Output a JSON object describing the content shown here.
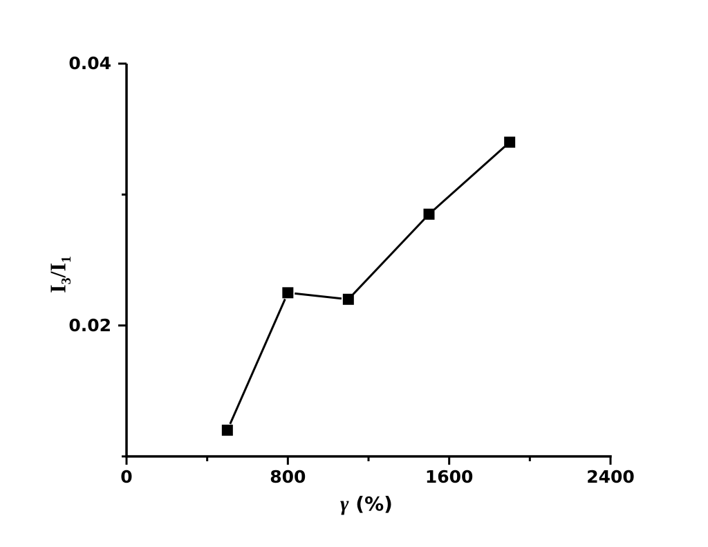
{
  "chart_data": {
    "type": "line",
    "title": "",
    "x": [
      500,
      800,
      1100,
      1500,
      1900
    ],
    "y": [
      0.012,
      0.0225,
      0.022,
      0.0285,
      0.034
    ],
    "xlim": [
      0,
      2400
    ],
    "ylim": [
      0.01,
      0.04
    ],
    "x_major_ticks": [
      0,
      800,
      1600,
      2400
    ],
    "x_minor_ticks": [
      400,
      1200,
      2000
    ],
    "x_tick_labels": [
      "0",
      "800",
      "1600",
      "2400"
    ],
    "y_major_ticks": [
      0.02,
      0.04
    ],
    "y_minor_ticks": [
      0.01,
      0.03
    ],
    "y_tick_labels": [
      "0.02",
      "0.04"
    ],
    "marker": "square",
    "grid": "off",
    "legend": "none",
    "line_color": "#000000",
    "marker_color": "#000000",
    "axis_color": "#000000",
    "background": "#ffffff",
    "xlabel": "γ (%)",
    "ylabel": "I3/I1",
    "xlabel_parts": {
      "symbol": "γ",
      "unit": " (%)"
    },
    "ylabel_parts": {
      "base1": "I",
      "sub1": "3",
      "mid": "/",
      "base2": "I",
      "sub2": "1"
    }
  }
}
